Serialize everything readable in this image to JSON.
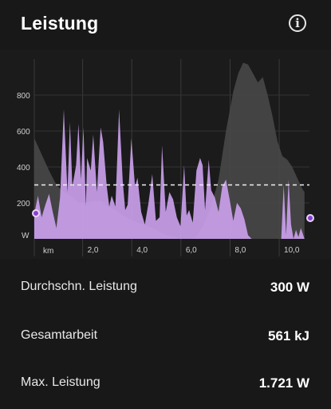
{
  "header": {
    "title": "Leistung",
    "info_icon": "info-icon"
  },
  "chart_data": {
    "type": "area",
    "title": "",
    "xlabel": "km",
    "ylabel": "W",
    "x_ticks": [
      "2,0",
      "4,0",
      "6,0",
      "8,0",
      "10,0"
    ],
    "x_tick_values": [
      2,
      4,
      6,
      8,
      10
    ],
    "y_ticks": [
      "200",
      "400",
      "600",
      "800"
    ],
    "y_tick_values": [
      200,
      400,
      600,
      800
    ],
    "ylim": [
      0,
      1000
    ],
    "xlim": [
      0,
      11.2
    ],
    "grid": true,
    "average_line": 300,
    "series": [
      {
        "color": "#cda2f0",
        "x": [
          0,
          0.15,
          0.3,
          0.45,
          0.6,
          0.75,
          0.9,
          1.05,
          1.2,
          1.35,
          1.45,
          1.55,
          1.7,
          1.8,
          1.9,
          2.0,
          2.1,
          2.15,
          2.3,
          2.4,
          2.55,
          2.7,
          2.8,
          2.95,
          3.05,
          3.15,
          3.3,
          3.45,
          3.6,
          3.7,
          3.8,
          3.95,
          4.1,
          4.2,
          4.35,
          4.5,
          4.65,
          4.8,
          4.95,
          5.1,
          5.2,
          5.35,
          5.5,
          5.65,
          5.8,
          5.95,
          6.1,
          6.2,
          6.3,
          6.45,
          6.6,
          6.75,
          6.85,
          6.95,
          7.1,
          7.2,
          7.35,
          7.5,
          7.65,
          7.8,
          7.95,
          8.1,
          8.25,
          8.4,
          8.55,
          8.7,
          8.85,
          9.0,
          9.15,
          9.3,
          9.45,
          9.6,
          9.75,
          9.9,
          10.05,
          10.15,
          10.25,
          10.35,
          10.45,
          10.55,
          10.65,
          10.75,
          10.85,
          11.0
        ],
        "values": [
          140,
          240,
          120,
          190,
          250,
          150,
          60,
          230,
          720,
          260,
          650,
          290,
          410,
          640,
          330,
          620,
          180,
          450,
          380,
          580,
          260,
          620,
          540,
          290,
          180,
          240,
          180,
          720,
          320,
          160,
          190,
          560,
          290,
          340,
          150,
          80,
          200,
          360,
          100,
          120,
          520,
          150,
          260,
          220,
          120,
          70,
          410,
          130,
          160,
          90,
          380,
          450,
          410,
          160,
          440,
          270,
          230,
          150,
          290,
          330,
          220,
          100,
          200,
          170,
          110,
          20,
          0,
          0,
          0,
          0,
          0,
          0,
          0,
          0,
          0,
          300,
          20,
          330,
          80,
          0,
          50,
          10,
          60,
          0
        ]
      },
      {
        "color": "#4a4a4a",
        "x": [
          0,
          0.3,
          0.6,
          0.9,
          1.2,
          1.5,
          1.8,
          2.1,
          2.4,
          2.7,
          3.0,
          3.3,
          3.6,
          3.9,
          4.2,
          4.5,
          4.8,
          5.1,
          5.4,
          5.7,
          6.0,
          6.3,
          6.6,
          6.9,
          7.2,
          7.5,
          7.8,
          8.1,
          8.3,
          8.5,
          8.7,
          8.9,
          9.1,
          9.3,
          9.5,
          9.7,
          9.9,
          10.1,
          10.3,
          10.5,
          10.7,
          10.9,
          11.0
        ],
        "values": [
          560,
          470,
          380,
          300,
          260,
          240,
          200,
          200,
          210,
          210,
          180,
          160,
          130,
          110,
          90,
          80,
          60,
          40,
          20,
          10,
          0,
          0,
          10,
          80,
          180,
          330,
          600,
          820,
          920,
          980,
          970,
          920,
          870,
          900,
          800,
          680,
          540,
          460,
          440,
          400,
          340,
          280,
          260
        ]
      }
    ]
  },
  "stats": [
    {
      "label": "Durchschn. Leistung",
      "value": "300 W"
    },
    {
      "label": "Gesamtarbeit",
      "value": "561 kJ"
    },
    {
      "label": "Max. Leistung",
      "value": "1.721 W"
    }
  ]
}
